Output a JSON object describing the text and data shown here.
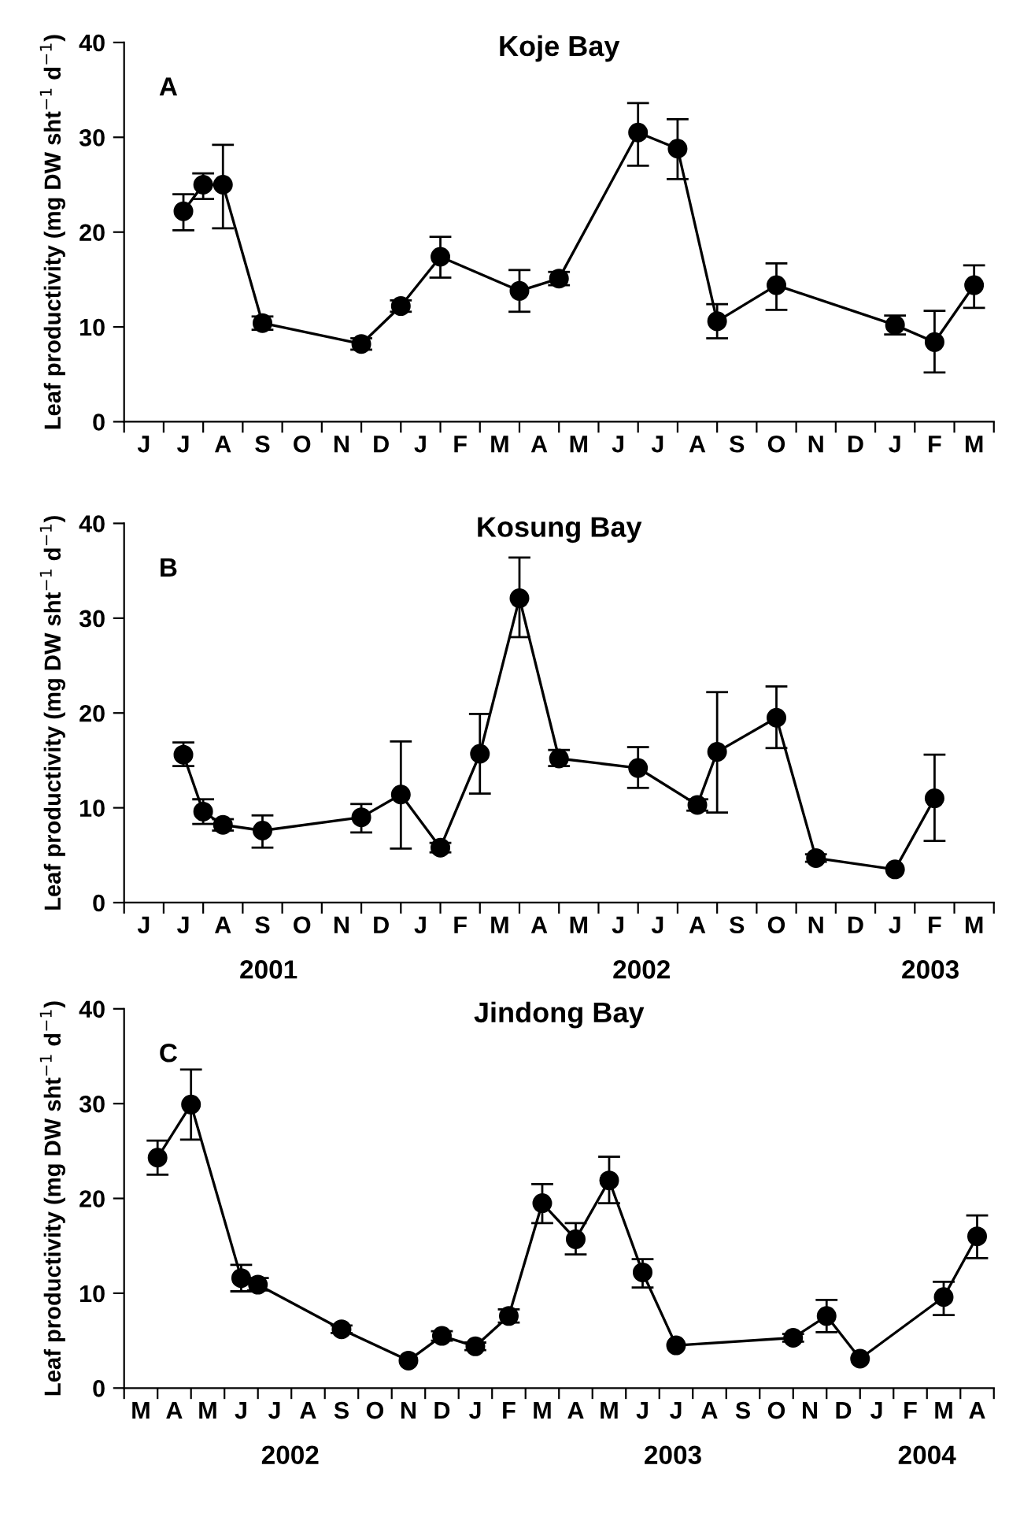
{
  "chart_data": [
    {
      "type": "line",
      "title": "Koje Bay",
      "ylabel": "Leaf productivity (mg DW sht$^{−1}$ d$^{−1}$)",
      "annotations": [
        "A"
      ],
      "categories": [
        null,
        "J",
        null,
        "J",
        null,
        "A",
        null,
        "S",
        null,
        "O",
        null,
        "N",
        null,
        "D",
        null,
        "J",
        null,
        "F",
        null,
        "M",
        null,
        "A",
        null,
        "M",
        null,
        "J",
        null,
        "J",
        null,
        "A",
        null,
        "S",
        null,
        "O",
        null,
        "N",
        null,
        "D",
        null,
        "J",
        null,
        "F",
        null,
        "M",
        null
      ],
      "ylim": [
        0,
        40
      ],
      "yticks": [
        0,
        10,
        20,
        30,
        40
      ],
      "marker": "circle",
      "line_style": "solid",
      "grid": false,
      "legend": false,
      "series": [
        {
          "color": "#000000",
          "values": [
            null,
            null,
            null,
            22.2,
            25.0,
            25.0,
            null,
            10.4,
            null,
            null,
            null,
            null,
            8.2,
            null,
            12.2,
            null,
            17.4,
            null,
            null,
            null,
            13.8,
            null,
            15.1,
            null,
            null,
            null,
            30.5,
            null,
            28.8,
            null,
            10.6,
            null,
            null,
            14.4,
            null,
            null,
            null,
            null,
            null,
            10.2,
            null,
            8.4,
            null,
            14.4,
            null
          ],
          "errors": [
            null,
            null,
            null,
            [
              20.2,
              24.0
            ],
            [
              23.5,
              26.2
            ],
            [
              20.4,
              29.2
            ],
            null,
            [
              9.7,
              11.1
            ],
            null,
            null,
            null,
            null,
            [
              7.6,
              8.8
            ],
            null,
            [
              11.6,
              12.8
            ],
            null,
            [
              15.2,
              19.5
            ],
            null,
            null,
            null,
            [
              11.6,
              16.0
            ],
            null,
            [
              14.4,
              15.8
            ],
            null,
            null,
            null,
            [
              27.0,
              33.6
            ],
            null,
            [
              25.6,
              31.9
            ],
            null,
            [
              8.8,
              12.4
            ],
            null,
            null,
            [
              11.8,
              16.7
            ],
            null,
            null,
            null,
            null,
            null,
            [
              9.2,
              11.2
            ],
            null,
            [
              5.2,
              11.7
            ],
            null,
            [
              12.0,
              16.5
            ],
            null
          ]
        }
      ]
    },
    {
      "type": "line",
      "title": "Kosung Bay",
      "ylabel": "Leaf productivity (mg DW sht$^{−1}$ d$^{−1}$)",
      "annotations": [
        "B",
        "2001",
        "2002",
        "2003"
      ],
      "categories": [
        null,
        "J",
        null,
        "J",
        null,
        "A",
        null,
        "S",
        null,
        "O",
        null,
        "N",
        null,
        "D",
        null,
        "J",
        null,
        "F",
        null,
        "M",
        null,
        "A",
        null,
        "M",
        null,
        "J",
        null,
        "J",
        null,
        "A",
        null,
        "S",
        null,
        "O",
        null,
        "N",
        null,
        "D",
        null,
        "J",
        null,
        "F",
        null,
        "M",
        null
      ],
      "ylim": [
        0,
        40
      ],
      "yticks": [
        0,
        10,
        20,
        30,
        40
      ],
      "marker": "circle",
      "line_style": "solid",
      "grid": false,
      "legend": false,
      "series": [
        {
          "color": "#000000",
          "values": [
            null,
            null,
            null,
            15.6,
            9.6,
            8.2,
            null,
            7.6,
            null,
            null,
            null,
            null,
            9.0,
            null,
            11.4,
            null,
            5.8,
            null,
            15.7,
            null,
            32.1,
            null,
            15.2,
            null,
            null,
            null,
            14.2,
            null,
            null,
            10.3,
            15.9,
            null,
            null,
            19.5,
            null,
            4.7,
            null,
            null,
            null,
            3.5,
            null,
            11.0,
            null,
            null,
            null
          ],
          "errors": [
            null,
            null,
            null,
            [
              14.4,
              16.9
            ],
            [
              8.3,
              10.9
            ],
            [
              7.6,
              8.8
            ],
            null,
            [
              5.8,
              9.2
            ],
            null,
            null,
            null,
            null,
            [
              7.4,
              10.4
            ],
            null,
            [
              5.7,
              17.0
            ],
            null,
            [
              5.3,
              6.3
            ],
            null,
            [
              11.5,
              19.9
            ],
            null,
            [
              28.0,
              36.4
            ],
            null,
            [
              14.4,
              16.1
            ],
            null,
            null,
            null,
            [
              12.1,
              16.4
            ],
            null,
            null,
            [
              9.7,
              10.9
            ],
            [
              9.5,
              22.2
            ],
            null,
            null,
            [
              16.3,
              22.8
            ],
            null,
            [
              4.3,
              5.1
            ],
            null,
            null,
            null,
            null,
            null,
            [
              6.5,
              15.6
            ],
            null,
            null,
            null
          ]
        }
      ]
    },
    {
      "type": "line",
      "title": "Jindong Bay",
      "ylabel": "Leaf productivity (mg DW sht$^{−1}$ d$^{−1}$)",
      "annotations": [
        "C",
        "2002",
        "2003",
        "2004"
      ],
      "categories": [
        null,
        "M",
        null,
        "A",
        null,
        "M",
        null,
        "J",
        null,
        "J",
        null,
        "A",
        null,
        "S",
        null,
        "O",
        null,
        "N",
        null,
        "D",
        null,
        "J",
        null,
        "F",
        null,
        "M",
        null,
        "A",
        null,
        "M",
        null,
        "J",
        null,
        "J",
        null,
        "A",
        null,
        "S",
        null,
        "O",
        null,
        "N",
        null,
        "D",
        null,
        "J",
        null,
        "F",
        null,
        "M",
        null,
        "A",
        null
      ],
      "ylim": [
        0,
        40
      ],
      "yticks": [
        0,
        10,
        20,
        30,
        40
      ],
      "marker": "circle",
      "line_style": "solid",
      "grid": false,
      "legend": false,
      "series": [
        {
          "color": "#000000",
          "values": [
            null,
            null,
            24.3,
            null,
            29.9,
            null,
            null,
            11.6,
            10.9,
            null,
            null,
            null,
            null,
            6.2,
            null,
            null,
            null,
            2.9,
            null,
            5.5,
            null,
            4.4,
            null,
            7.6,
            null,
            19.5,
            null,
            15.7,
            null,
            21.9,
            null,
            12.2,
            null,
            4.5,
            null,
            null,
            null,
            null,
            null,
            null,
            5.3,
            null,
            7.6,
            null,
            3.1,
            null,
            null,
            null,
            null,
            9.6,
            null,
            16.0,
            null
          ],
          "errors": [
            null,
            null,
            [
              22.5,
              26.1
            ],
            null,
            [
              26.2,
              33.6
            ],
            null,
            null,
            [
              10.2,
              13.0
            ],
            [
              10.3,
              11.6
            ],
            null,
            null,
            null,
            null,
            [
              5.8,
              6.6
            ],
            null,
            null,
            null,
            null,
            null,
            [
              5.0,
              6.0
            ],
            null,
            [
              4.0,
              4.8
            ],
            null,
            [
              6.9,
              8.3
            ],
            null,
            [
              17.4,
              21.5
            ],
            null,
            [
              14.1,
              17.4
            ],
            null,
            [
              19.5,
              24.4
            ],
            null,
            [
              10.6,
              13.6
            ],
            null,
            null,
            null,
            null,
            null,
            null,
            null,
            null,
            [
              4.9,
              5.7
            ],
            null,
            [
              5.9,
              9.3
            ],
            null,
            null,
            null,
            null,
            null,
            null,
            [
              7.7,
              11.2
            ],
            null,
            [
              13.7,
              18.2
            ],
            null
          ]
        }
      ]
    }
  ]
}
